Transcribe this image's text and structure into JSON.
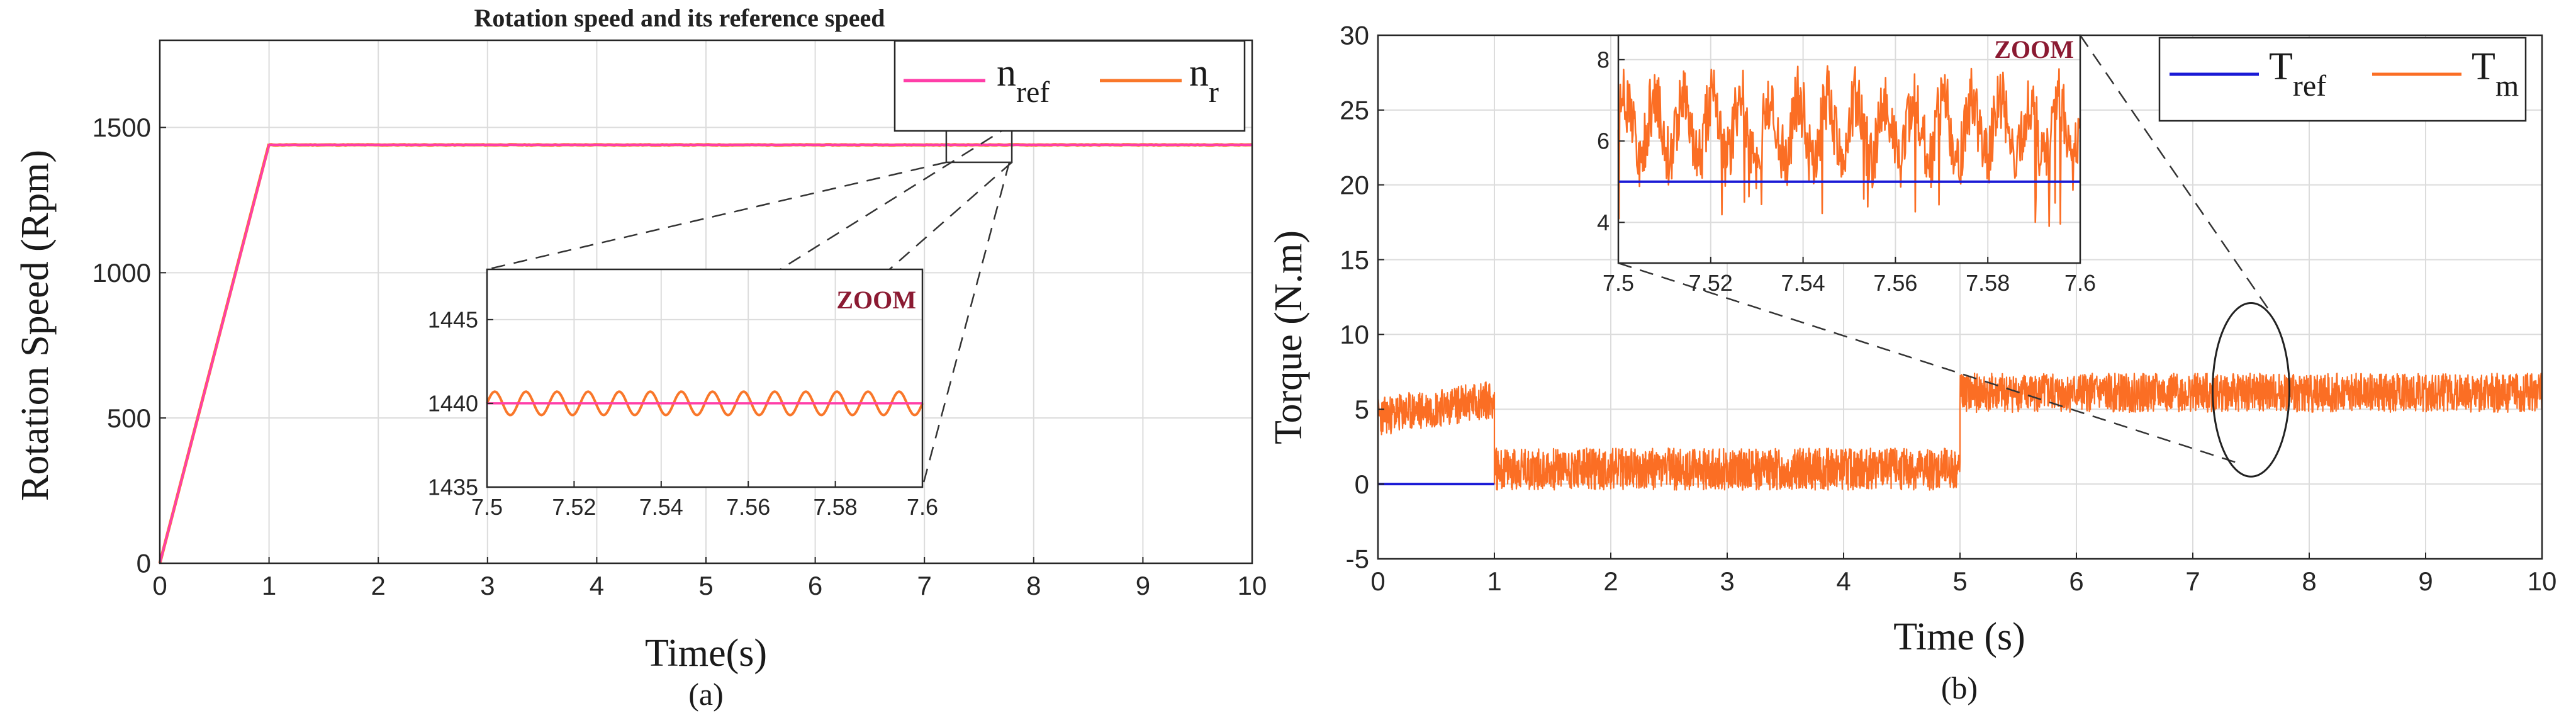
{
  "colors": {
    "n_ref": "#ff3ea8",
    "n_r": "#f9772a",
    "t_ref": "#1a1ad6",
    "t_m": "#fb6e24",
    "zoom_label": "#8b1a32",
    "grid": "#dcdcdc",
    "axis": "#262626"
  },
  "chart_data": [
    {
      "id": "a",
      "type": "line",
      "title": "Rotation speed and its reference speed",
      "caption": "(a)",
      "xlabel": "Time(s)",
      "ylabel": "Rotation Speed (Rpm)",
      "xlim": [
        0,
        10
      ],
      "ylim": [
        0,
        1800
      ],
      "xticks": [
        0,
        1,
        2,
        3,
        4,
        5,
        6,
        7,
        8,
        9,
        10
      ],
      "yticks": [
        0,
        500,
        1000,
        1500
      ],
      "grid": true,
      "legend": {
        "position": "top-right",
        "entries": [
          {
            "main": "n",
            "sub": "ref",
            "color_key": "n_ref"
          },
          {
            "main": "n",
            "sub": "r",
            "color_key": "n_r"
          }
        ]
      },
      "series": [
        {
          "name": "n_ref",
          "x": [
            0,
            1,
            10
          ],
          "y": [
            0,
            1440,
            1440
          ]
        },
        {
          "name": "n_r",
          "x": [
            0,
            1,
            10
          ],
          "y": [
            0,
            1443,
            1440
          ],
          "ripple": 1
        }
      ],
      "zoom_box": {
        "x": [
          7.2,
          7.8
        ],
        "y": [
          1380,
          1510
        ]
      },
      "inset": {
        "label": "ZOOM",
        "xlim": [
          7.5,
          7.6
        ],
        "ylim": [
          1435,
          1448
        ],
        "xticks": [
          7.5,
          7.52,
          7.54,
          7.56,
          7.58,
          7.6
        ],
        "yticks": [
          1435,
          1440,
          1445
        ],
        "n_ref": 1440,
        "n_r_mean": 1440,
        "n_r_amplitude": 0.7,
        "n_r_cycles": 14
      }
    },
    {
      "id": "b",
      "type": "line",
      "title": "",
      "caption": "(b)",
      "xlabel": "Time (s)",
      "ylabel": "Torque (N.m)",
      "xlim": [
        0,
        10
      ],
      "ylim": [
        -5,
        30
      ],
      "xticks": [
        0,
        1,
        2,
        3,
        4,
        5,
        6,
        7,
        8,
        9,
        10
      ],
      "yticks": [
        -5,
        0,
        5,
        10,
        15,
        20,
        25,
        30
      ],
      "grid": true,
      "legend": {
        "position": "top-right",
        "entries": [
          {
            "main": "T",
            "sub": "ref",
            "color_key": "t_ref"
          },
          {
            "main": "T",
            "sub": "m",
            "color_key": "t_m"
          }
        ]
      },
      "series": [
        {
          "name": "T_ref",
          "x": [
            0,
            1
          ],
          "y": [
            0,
            0
          ]
        },
        {
          "name": "T_m",
          "segments": [
            {
              "x": [
                0,
                1
              ],
              "center_start": 4.5,
              "center_end": 5.7,
              "band": 2.6
            },
            {
              "x": [
                1,
                5
              ],
              "center_start": 1.0,
              "center_end": 1.0,
              "band": 2.8
            },
            {
              "x": [
                5,
                10
              ],
              "center_start": 6.1,
              "center_end": 6.1,
              "band": 2.6
            }
          ]
        }
      ],
      "zoom_ellipse": {
        "cx": 7.5,
        "cy": 6.3,
        "rx": 0.33,
        "ry": 5.8
      },
      "inset": {
        "label": "ZOOM",
        "xlim": [
          7.5,
          7.6
        ],
        "ylim": [
          3,
          8.6
        ],
        "xticks": [
          7.5,
          7.52,
          7.54,
          7.56,
          7.58,
          7.6
        ],
        "yticks": [
          4,
          6,
          8
        ],
        "t_ref": 5,
        "t_m_mean": 6.3,
        "t_m_amplitude": 0.75
      }
    }
  ]
}
